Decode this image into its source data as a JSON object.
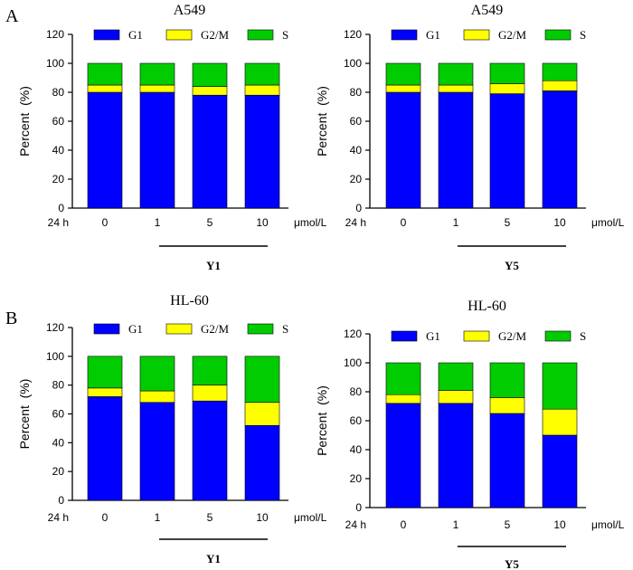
{
  "panel_labels": [
    "A",
    "B"
  ],
  "colors": {
    "G1": "#0000ff",
    "G2/M": "#ffff00",
    "S": "#00cc00",
    "axis": "#000000"
  },
  "chart_data": [
    {
      "type": "bar",
      "stacked": true,
      "title": "A549",
      "xlabel": "",
      "ylabel": "Percent  (%)",
      "ylim": [
        0,
        120
      ],
      "yticks": [
        0,
        20,
        40,
        60,
        80,
        100,
        120
      ],
      "time_label": "24 h",
      "unit_label": "μmol/L",
      "compound_label": "Y1",
      "categories": [
        "0",
        "1",
        "5",
        "10"
      ],
      "series": [
        {
          "name": "G1",
          "values": [
            80,
            80,
            78,
            78
          ]
        },
        {
          "name": "G2/M",
          "values": [
            5,
            5,
            6,
            7
          ]
        },
        {
          "name": "S",
          "values": [
            15,
            15,
            16,
            15
          ]
        }
      ]
    },
    {
      "type": "bar",
      "stacked": true,
      "title": "A549",
      "xlabel": "",
      "ylabel": "Percent  (%)",
      "ylim": [
        0,
        120
      ],
      "yticks": [
        0,
        20,
        40,
        60,
        80,
        100,
        120
      ],
      "time_label": "24 h",
      "unit_label": "μmol/L",
      "compound_label": "Y5",
      "categories": [
        "0",
        "1",
        "5",
        "10"
      ],
      "series": [
        {
          "name": "G1",
          "values": [
            80,
            80,
            79,
            81
          ]
        },
        {
          "name": "G2/M",
          "values": [
            5,
            5,
            7,
            7
          ]
        },
        {
          "name": "S",
          "values": [
            15,
            15,
            14,
            12
          ]
        }
      ]
    },
    {
      "type": "bar",
      "stacked": true,
      "title": "HL-60",
      "xlabel": "",
      "ylabel": "Percent  (%)",
      "ylim": [
        0,
        120
      ],
      "yticks": [
        0,
        20,
        40,
        60,
        80,
        100,
        120
      ],
      "time_label": "24 h",
      "unit_label": "μmol/L",
      "compound_label": "Y1",
      "categories": [
        "0",
        "1",
        "5",
        "10"
      ],
      "series": [
        {
          "name": "G1",
          "values": [
            72,
            68,
            69,
            52
          ]
        },
        {
          "name": "G2/M",
          "values": [
            6,
            8,
            11,
            16
          ]
        },
        {
          "name": "S",
          "values": [
            22,
            24,
            20,
            32
          ]
        }
      ]
    },
    {
      "type": "bar",
      "stacked": true,
      "title": "HL-60",
      "xlabel": "",
      "ylabel": "Percent  (%)",
      "ylim": [
        0,
        120
      ],
      "yticks": [
        0,
        20,
        40,
        60,
        80,
        100,
        120
      ],
      "time_label": "24 h",
      "unit_label": "μmol/L",
      "compound_label": "Y5",
      "categories": [
        "0",
        "1",
        "5",
        "10"
      ],
      "series": [
        {
          "name": "G1",
          "values": [
            72,
            72,
            65,
            50
          ]
        },
        {
          "name": "G2/M",
          "values": [
            6,
            9,
            11,
            18
          ]
        },
        {
          "name": "S",
          "values": [
            22,
            19,
            24,
            32
          ]
        }
      ]
    }
  ]
}
